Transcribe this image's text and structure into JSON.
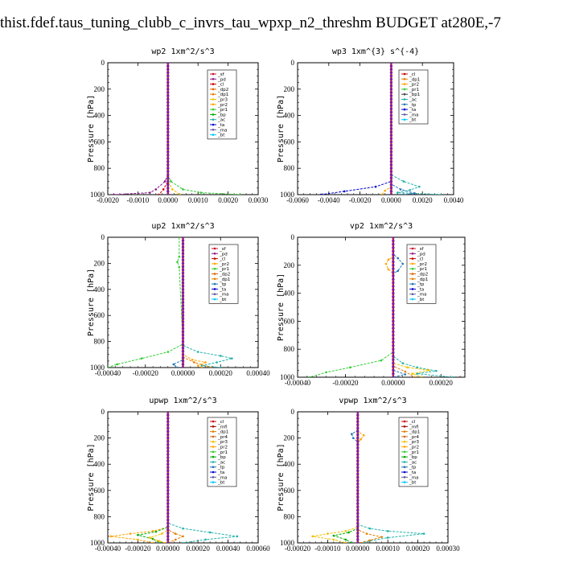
{
  "title": "thist.fdef.taus_tuning_clubb_c_invrs_tau_wpxp_n2_threshm  BUDGET at280E,-7",
  "colors": {
    "_sf": "#c8102e",
    "_pd": "#8b1a8b",
    "_cl": "#cc0000",
    "_dp2": "#e06000",
    "_dp1": "#e08000",
    "_pr3": "#f0c000",
    "_pr2": "#ffa500",
    "_pr1": "#32cd32",
    "_bp": "#00aa00",
    "_ac": "#20b2aa",
    "_tp": "#1f77b4",
    "_ta": "#0000cd",
    "_ma": "#5f5f9f",
    "_bt": "#00c8ff",
    "_mfl": "#a00000",
    "_dp4": "#cc3300",
    "_pr4": "#d2691e",
    "profile": "#7b1fa2",
    "center": "#e01010"
  },
  "chart_data": [
    {
      "type": "line",
      "title": "wp2  1xm^2/s^3",
      "ylabel": "Pressure [hPa]",
      "xlim": [
        -0.002,
        0.003
      ],
      "ylim": [
        1000,
        0
      ],
      "xticks": [
        "-0.0020",
        "-0.0010",
        "0.0000",
        "0.0010",
        "0.0020",
        "0.0030"
      ],
      "yticks": [
        "0",
        "200",
        "400",
        "600",
        "800",
        "1000"
      ],
      "legend": [
        "_sf",
        "_pd",
        "_cl",
        "_dp2",
        "_dp1",
        "_pr3",
        "_pr2",
        "_pr1",
        "_bp",
        "_ac",
        "_ta",
        "_ma",
        "_bt"
      ],
      "series": [
        {
          "name": "_pd",
          "points": [
            [
              0,
              0
            ],
            [
              0,
              850
            ],
            [
              -0.0001,
              900
            ],
            [
              -0.0004,
              960
            ],
            [
              -0.0006,
              985
            ],
            [
              -0.0018,
              1000
            ]
          ]
        },
        {
          "name": "_pr1",
          "points": [
            [
              0,
              0
            ],
            [
              0,
              850
            ],
            [
              0.0001,
              900
            ],
            [
              0.0005,
              960
            ],
            [
              0.0011,
              985
            ],
            [
              0.0024,
              1000
            ]
          ]
        },
        {
          "name": "_cl",
          "points": [
            [
              0,
              0
            ],
            [
              0,
              900
            ],
            [
              -0.00015,
              960
            ],
            [
              -0.0003,
              1000
            ]
          ]
        },
        {
          "name": "_pr3",
          "points": [
            [
              0,
              0
            ],
            [
              0,
              900
            ],
            [
              0.00015,
              960
            ],
            [
              0.0004,
              1000
            ]
          ]
        }
      ]
    },
    {
      "type": "line",
      "title": "wp3  1xm^{3} s^{-4}",
      "ylabel": "Pressure [hPa]",
      "xlim": [
        -0.006,
        0.004
      ],
      "ylim": [
        1000,
        0
      ],
      "xticks": [
        "-0.0060",
        "-0.0040",
        "-0.0020",
        "0.0000",
        "0.0020",
        "0.0040"
      ],
      "yticks": [
        "0",
        "200",
        "400",
        "600",
        "800",
        "1000"
      ],
      "legend": [
        "_cl",
        "_dp1",
        "_pr2",
        "_pr1",
        "_bp1",
        "_ac",
        "_tp",
        "_ta",
        "_ma",
        "_bt"
      ],
      "series": [
        {
          "name": "_ac",
          "points": [
            [
              0,
              0
            ],
            [
              0,
              850
            ],
            [
              0.0008,
              900
            ],
            [
              0.0018,
              940
            ],
            [
              0.0012,
              965
            ],
            [
              0.0004,
              985
            ],
            [
              0.0032,
              1000
            ]
          ]
        },
        {
          "name": "_ta",
          "points": [
            [
              0,
              0
            ],
            [
              0,
              900
            ],
            [
              -0.001,
              940
            ],
            [
              -0.003,
              975
            ],
            [
              -0.0045,
              1000
            ]
          ]
        },
        {
          "name": "_tp",
          "points": [
            [
              0,
              0
            ],
            [
              0,
              920
            ],
            [
              0.0006,
              960
            ],
            [
              0.0015,
              990
            ],
            [
              0.0008,
              1000
            ]
          ]
        },
        {
          "name": "_pr2",
          "points": [
            [
              0,
              0
            ],
            [
              0,
              940
            ],
            [
              -0.0004,
              970
            ],
            [
              -0.0006,
              1000
            ]
          ]
        }
      ]
    },
    {
      "type": "line",
      "title": "up2  1xm^2/s^3",
      "ylabel": "Pressure [hPa]",
      "xlim": [
        -0.0004,
        0.0004
      ],
      "ylim": [
        1000,
        0
      ],
      "xticks": [
        "-0.00040",
        "-0.00020",
        "0.00000",
        "0.00020",
        "0.00040"
      ],
      "yticks": [
        "0",
        "200",
        "400",
        "600",
        "800",
        "1000"
      ],
      "legend": [
        "_sf",
        "_pd",
        "_cl",
        "_pr2",
        "_pr1",
        "_dp2",
        "_dp1",
        "_tp",
        "_ta",
        "_ma",
        "_bt"
      ],
      "series": [
        {
          "name": "_pr1",
          "points": [
            [
              -2e-05,
              0
            ],
            [
              -2e-05,
              150
            ],
            [
              -3e-05,
              190
            ],
            [
              -2e-05,
              230
            ],
            [
              0,
              820
            ],
            [
              -8e-05,
              880
            ],
            [
              -0.00022,
              930
            ],
            [
              -0.00035,
              975
            ],
            [
              -0.0004,
              1000
            ]
          ]
        },
        {
          "name": "_ac",
          "points": [
            [
              0,
              0
            ],
            [
              0,
              830
            ],
            [
              8e-05,
              880
            ],
            [
              0.0002,
              910
            ],
            [
              0.00026,
              930
            ],
            [
              0.00018,
              960
            ],
            [
              0.0001,
              985
            ],
            [
              0.0002,
              1000
            ]
          ]
        },
        {
          "name": "_pr2",
          "points": [
            [
              0,
              0
            ],
            [
              0,
              900
            ],
            [
              5e-05,
              940
            ],
            [
              0.00012,
              960
            ],
            [
              8e-05,
              985
            ],
            [
              0.0001,
              1000
            ]
          ]
        },
        {
          "name": "_dp1",
          "points": [
            [
              0,
              0
            ],
            [
              0,
              920
            ],
            [
              6e-05,
              960
            ],
            [
              0.00015,
              1000
            ]
          ]
        },
        {
          "name": "_tp",
          "points": [
            [
              0,
              0
            ],
            [
              0,
              940
            ],
            [
              -5e-05,
              975
            ],
            [
              -3e-05,
              1000
            ]
          ]
        }
      ]
    },
    {
      "type": "line",
      "title": "vp2  1xm^2/s^3",
      "ylabel": "Pressure [hPa]",
      "xlim": [
        -0.0004,
        0.0003
      ],
      "ylim": [
        1000,
        0
      ],
      "xticks": [
        "-0.00040",
        "-0.00020",
        "0.00000",
        "0.00020"
      ],
      "yticks": [
        "0",
        "200",
        "400",
        "600",
        "800",
        "1000"
      ],
      "legend": [
        "_sf",
        "_pd",
        "_cl",
        "_pr2",
        "_pr1",
        "_dp2",
        "_dp1",
        "_tp",
        "_ta",
        "_ma",
        "_bt"
      ],
      "series": [
        {
          "name": "_tp",
          "points": [
            [
              0,
              0
            ],
            [
              0,
              120
            ],
            [
              2e-05,
              150
            ],
            [
              4e-05,
              190
            ],
            [
              2e-05,
              240
            ],
            [
              0,
              260
            ],
            [
              0,
              950
            ],
            [
              5e-05,
              980
            ],
            [
              0.0,
              1000
            ]
          ]
        },
        {
          "name": "_pr2",
          "points": [
            [
              0,
              0
            ],
            [
              0,
              140
            ],
            [
              -2e-05,
              160
            ],
            [
              -3e-05,
              190
            ],
            [
              -2e-05,
              230
            ],
            [
              0,
              260
            ],
            [
              0,
              1000
            ]
          ]
        },
        {
          "name": "_pr1",
          "points": [
            [
              0,
              0
            ],
            [
              0,
              820
            ],
            [
              -5e-05,
              880
            ],
            [
              -0.00018,
              930
            ],
            [
              -0.00028,
              965
            ],
            [
              -0.00035,
              1000
            ]
          ]
        },
        {
          "name": "_ac",
          "points": [
            [
              0,
              0
            ],
            [
              0,
              850
            ],
            [
              4e-05,
              900
            ],
            [
              0.0001,
              930
            ],
            [
              0.00018,
              955
            ],
            [
              0.0001,
              975
            ],
            [
              0.00025,
              1000
            ]
          ]
        },
        {
          "name": "_pr3",
          "points": [
            [
              0,
              0
            ],
            [
              0,
              900
            ],
            [
              6e-05,
              930
            ],
            [
              0.00015,
              950
            ],
            [
              8e-05,
              975
            ],
            [
              0.00012,
              1000
            ]
          ]
        },
        {
          "name": "_dp1",
          "points": [
            [
              0,
              0
            ],
            [
              0,
              920
            ],
            [
              5e-05,
              960
            ],
            [
              9e-05,
              1000
            ]
          ]
        }
      ]
    },
    {
      "type": "line",
      "title": "upwp  1xm^2/s^3",
      "ylabel": "Pressure [hPa]",
      "xlim": [
        -0.0004,
        0.0006
      ],
      "ylim": [
        1000,
        0
      ],
      "xticks": [
        "-0.00040",
        "-0.00020",
        "0.00000",
        "0.00020",
        "0.00040",
        "0.00060"
      ],
      "yticks": [
        "0",
        "200",
        "400",
        "600",
        "800",
        "1000"
      ],
      "legend": [
        "_cl",
        "_mfl",
        "_dp1",
        "_pr4",
        "_pr3",
        "_pr2",
        "_pr1",
        "_bp",
        "_ac",
        "_tp",
        "_ta",
        "_ma",
        "_bt"
      ],
      "series": [
        {
          "name": "_ac",
          "points": [
            [
              0,
              0
            ],
            [
              0,
              850
            ],
            [
              0.0001,
              890
            ],
            [
              0.00028,
              920
            ],
            [
              0.00046,
              950
            ],
            [
              0.00025,
              975
            ],
            [
              0.0001,
              1000
            ]
          ]
        },
        {
          "name": "_pr2",
          "points": [
            [
              0,
              0
            ],
            [
              0,
              880
            ],
            [
              -0.0001,
              910
            ],
            [
              -0.00025,
              930
            ],
            [
              -0.00038,
              950
            ],
            [
              -0.0002,
              975
            ],
            [
              -0.0001,
              1000
            ]
          ]
        },
        {
          "name": "_bp",
          "points": [
            [
              0,
              0
            ],
            [
              0,
              880
            ],
            [
              -8e-05,
              915
            ],
            [
              -0.0002,
              940
            ],
            [
              -0.0001,
              970
            ],
            [
              -5e-05,
              1000
            ]
          ]
        },
        {
          "name": "_dp1",
          "points": [
            [
              0,
              0
            ],
            [
              0,
              900
            ],
            [
              5e-05,
              930
            ],
            [
              0.0001,
              950
            ],
            [
              5e-05,
              975
            ],
            [
              0,
              1000
            ]
          ]
        },
        {
          "name": "_pr3",
          "points": [
            [
              0,
              0
            ],
            [
              0,
              900
            ],
            [
              -4e-05,
              930
            ],
            [
              -0.00012,
              960
            ],
            [
              -6e-05,
              985
            ],
            [
              -2e-05,
              1000
            ]
          ]
        }
      ]
    },
    {
      "type": "line",
      "title": "vpwp  1xm^2/s^3",
      "ylabel": "Pressure [hPa]",
      "xlim": [
        -0.0002,
        0.0003
      ],
      "ylim": [
        1000,
        0
      ],
      "xticks": [
        "-0.00020",
        "-0.00010",
        "0.00000",
        "0.00010",
        "0.00020",
        "0.00030"
      ],
      "yticks": [
        "0",
        "200",
        "400",
        "600",
        "800",
        "1000"
      ],
      "legend": [
        "_cl",
        "_mfl",
        "_dp1",
        "_pr4",
        "_pr3",
        "_pr2",
        "_pr1",
        "_bp",
        "_ac",
        "_tp",
        "_ta",
        "_ma",
        "_bt"
      ],
      "series": [
        {
          "name": "_tp",
          "points": [
            [
              0,
              0
            ],
            [
              0,
              140
            ],
            [
              -2e-05,
              170
            ],
            [
              -1.5e-05,
              200
            ],
            [
              0,
              230
            ],
            [
              0,
              1000
            ]
          ]
        },
        {
          "name": "_pr2",
          "points": [
            [
              0,
              0
            ],
            [
              0,
              150
            ],
            [
              2e-05,
              180
            ],
            [
              1e-05,
              210
            ],
            [
              0,
              240
            ],
            [
              0,
              1000
            ]
          ]
        },
        {
          "name": "_ac",
          "points": [
            [
              0,
              0
            ],
            [
              0,
              860
            ],
            [
              4e-05,
              890
            ],
            [
              0.0001,
              910
            ],
            [
              0.00022,
              930
            ],
            [
              0.0001,
              960
            ],
            [
              4e-05,
              985
            ],
            [
              2e-05,
              1000
            ]
          ]
        },
        {
          "name": "_pr3",
          "points": [
            [
              0,
              0
            ],
            [
              0,
              880
            ],
            [
              -4e-05,
              910
            ],
            [
              -0.0001,
              930
            ],
            [
              -0.00015,
              950
            ],
            [
              -8e-05,
              975
            ],
            [
              -4e-05,
              1000
            ]
          ]
        },
        {
          "name": "_bp",
          "points": [
            [
              0,
              0
            ],
            [
              0,
              890
            ],
            [
              -3e-05,
              920
            ],
            [
              -8e-05,
              945
            ],
            [
              -4e-05,
              975
            ],
            [
              -2e-05,
              1000
            ]
          ]
        },
        {
          "name": "_dp1",
          "points": [
            [
              0,
              0
            ],
            [
              0,
              900
            ],
            [
              3e-05,
              930
            ],
            [
              8e-05,
              955
            ],
            [
              4e-05,
              980
            ],
            [
              1e-05,
              1000
            ]
          ]
        }
      ]
    }
  ]
}
